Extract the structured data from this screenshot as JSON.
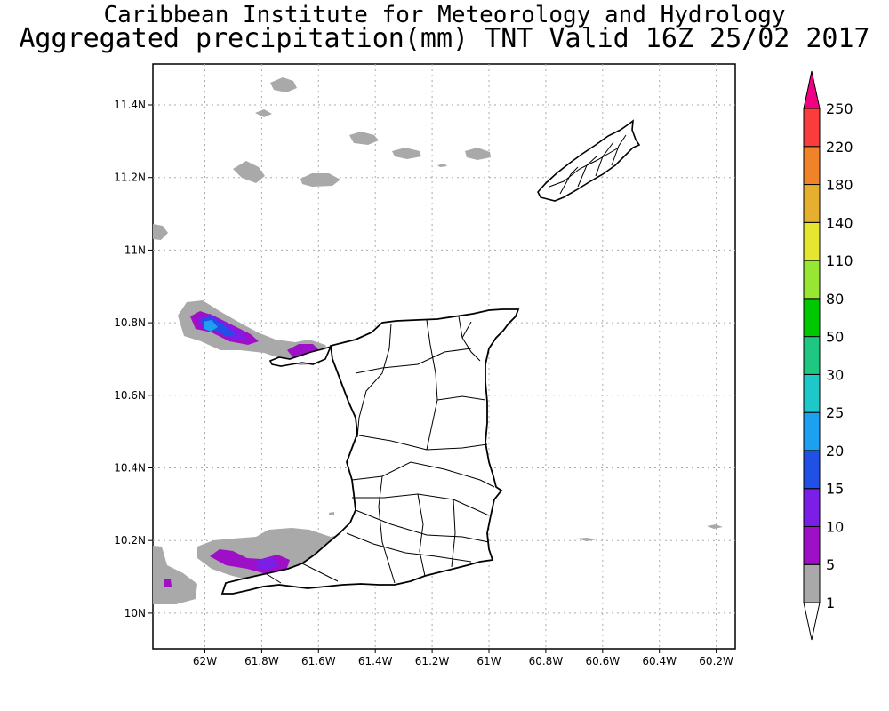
{
  "header": {
    "title": "Caribbean Institute for Meteorology and Hydrology",
    "subtitle": "Aggregated precipitation(mm) TNT Valid 16Z 25/02 2017"
  },
  "map": {
    "lon_ticks": [
      "62W",
      "61.8W",
      "61.6W",
      "61.4W",
      "61.2W",
      "61W",
      "60.8W",
      "60.6W",
      "60.4W",
      "60.2W"
    ],
    "lat_ticks": [
      "11.4N",
      "11.2N",
      "11N",
      "10.8N",
      "10.6N",
      "10.4N",
      "10.2N",
      "10N"
    ],
    "grid": true
  },
  "colorbar": {
    "labels": [
      "1",
      "5",
      "10",
      "15",
      "20",
      "25",
      "30",
      "50",
      "80",
      "110",
      "140",
      "180",
      "220",
      "250"
    ],
    "colors": [
      "#ffffff",
      "#a9a9a9",
      "#9e10c8",
      "#7b1ee6",
      "#2050e6",
      "#1ea0f0",
      "#1ec8c8",
      "#1ec882",
      "#00c800",
      "#96e632",
      "#e6e632",
      "#e6af2d",
      "#f08228",
      "#fa3c3c",
      "#f00082"
    ]
  }
}
